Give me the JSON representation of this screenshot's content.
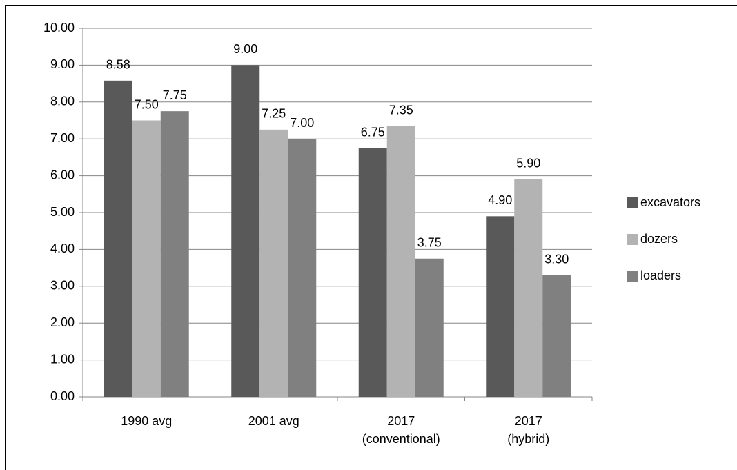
{
  "chart_data": {
    "type": "bar",
    "categories": [
      "1990 avg",
      "2001 avg",
      "2017\n(conventional)",
      "2017\n(hybrid)"
    ],
    "series": [
      {
        "name": "excavators",
        "color": "#595959",
        "values": [
          8.58,
          9,
          6.75,
          4.9
        ],
        "value_labels": [
          "8.58",
          "9.00",
          "6.75",
          "4.90"
        ]
      },
      {
        "name": "dozers",
        "color": "#b3b3b3",
        "values": [
          7.5,
          7.25,
          7.35,
          5.9
        ],
        "value_labels": [
          "7.50",
          "7.25",
          "7.35",
          "5.90"
        ]
      },
      {
        "name": "loaders",
        "color": "#808080",
        "values": [
          7.75,
          7,
          3.75,
          3.3
        ],
        "value_labels": [
          "7.75",
          "7.00",
          "3.75",
          "3.30"
        ]
      }
    ],
    "ylim": [
      0,
      10
    ],
    "yticks": [
      {
        "value": 0,
        "label": "0.00"
      },
      {
        "value": 1,
        "label": "1.00"
      },
      {
        "value": 2,
        "label": "2.00"
      },
      {
        "value": 3,
        "label": "3.00"
      },
      {
        "value": 4,
        "label": "4.00"
      },
      {
        "value": 5,
        "label": "5.00"
      },
      {
        "value": 6,
        "label": "6.00"
      },
      {
        "value": 7,
        "label": "7.00"
      },
      {
        "value": 8,
        "label": "8.00"
      },
      {
        "value": 9,
        "label": "9.00"
      },
      {
        "value": 10,
        "label": "10.00"
      }
    ],
    "grid": true,
    "legend": "right"
  }
}
